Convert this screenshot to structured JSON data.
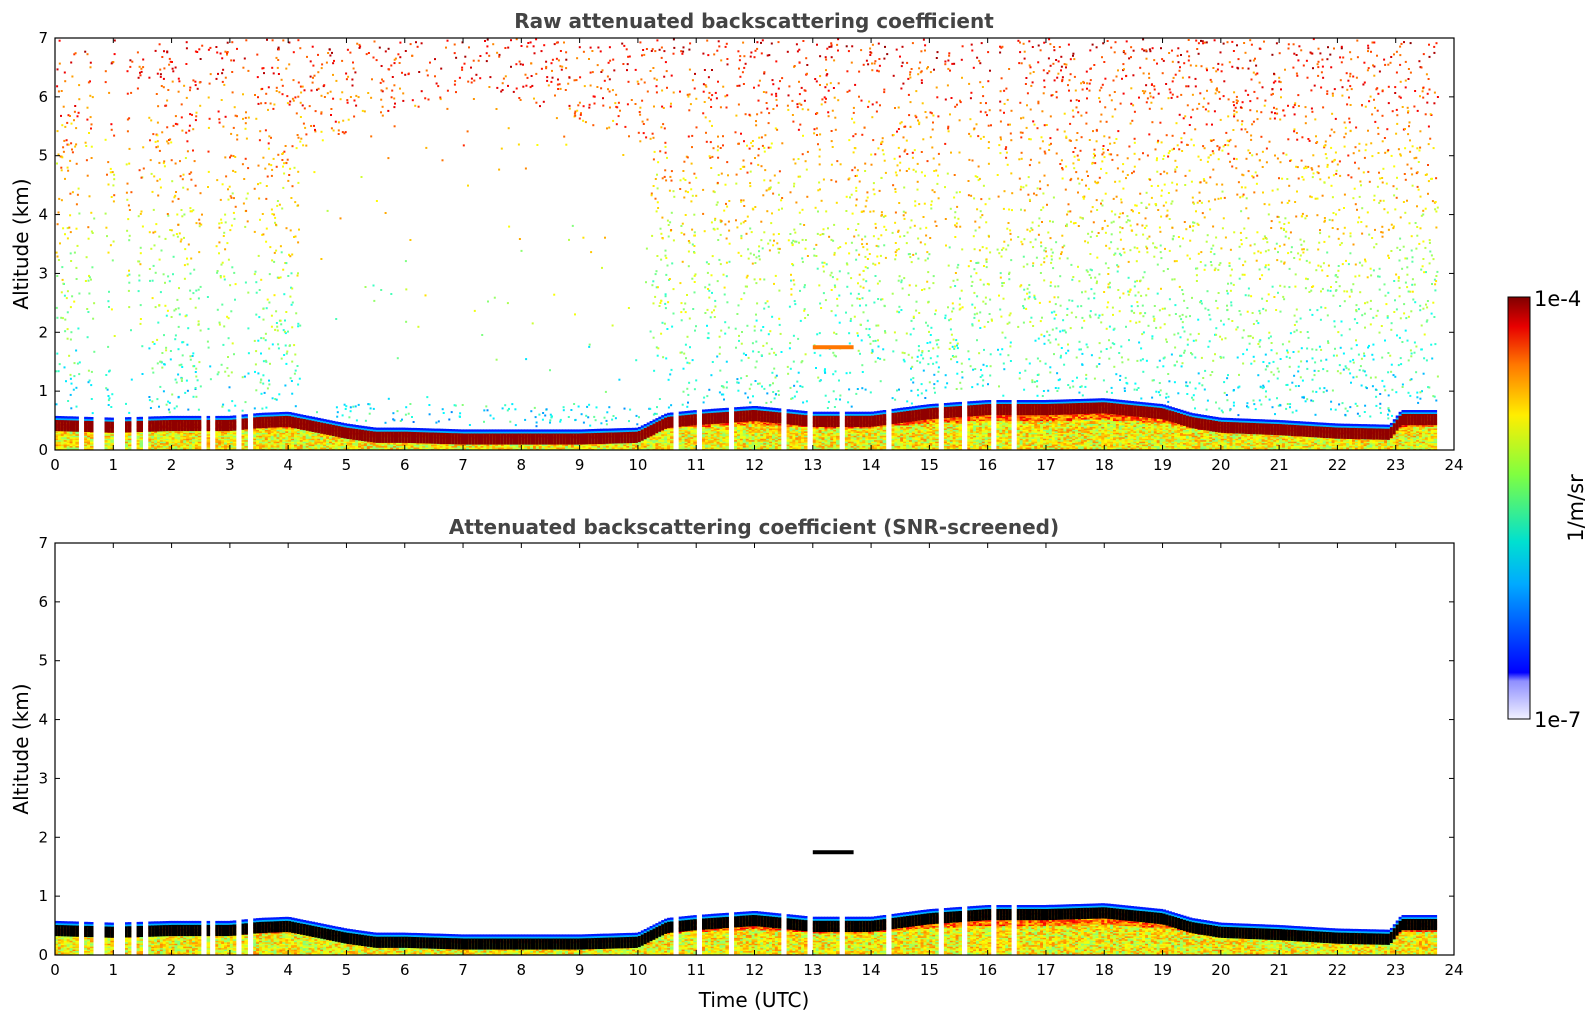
{
  "chart_data": [
    {
      "type": "heatmap",
      "title": "Raw attenuated backscattering coefficient",
      "xlabel": "",
      "ylabel": "Altitude (km)",
      "xlim": [
        0,
        24
      ],
      "ylim": [
        0,
        7
      ],
      "xticks": [
        "0",
        "1",
        "2",
        "3",
        "4",
        "5",
        "6",
        "7",
        "8",
        "9",
        "10",
        "11",
        "12",
        "13",
        "14",
        "15",
        "16",
        "17",
        "18",
        "19",
        "20",
        "21",
        "22",
        "23",
        "24"
      ],
      "yticks": [
        "0",
        "1",
        "2",
        "3",
        "4",
        "5",
        "6",
        "7"
      ],
      "data_end_hour": 23.7,
      "noise_extends_above_boundary_layer": true,
      "boundary_layer_top_km": {
        "hours": [
          0,
          1,
          2,
          3,
          3.5,
          4,
          4.5,
          5,
          5.5,
          6,
          7,
          8,
          9,
          10,
          10.5,
          11,
          12,
          13,
          14,
          15,
          16,
          17,
          18,
          19,
          19.5,
          20,
          21,
          22,
          22.9,
          23.1,
          23.7
        ],
        "values": [
          0.55,
          0.52,
          0.55,
          0.55,
          0.6,
          0.62,
          0.52,
          0.42,
          0.35,
          0.35,
          0.32,
          0.32,
          0.32,
          0.35,
          0.6,
          0.65,
          0.72,
          0.62,
          0.62,
          0.75,
          0.82,
          0.82,
          0.85,
          0.75,
          0.6,
          0.52,
          0.48,
          0.42,
          0.4,
          0.65,
          0.65
        ]
      },
      "gaps_hours": [
        0.45,
        0.7,
        0.8,
        1.05,
        1.15,
        1.35,
        1.55,
        2.55,
        2.7,
        3.15,
        3.35,
        10.65,
        11.05,
        11.6,
        12.5,
        12.95,
        13.5,
        14.3,
        15.2,
        15.6,
        16.1,
        16.45
      ],
      "elevated_layer": {
        "hours": [
          13.0,
          13.7
        ],
        "altitude_km": 1.75
      }
    },
    {
      "type": "heatmap",
      "title": "Attenuated backscattering coefficient (SNR-screened)",
      "xlabel": "Time (UTC)",
      "ylabel": "Altitude (km)",
      "xlim": [
        0,
        24
      ],
      "ylim": [
        0,
        7
      ],
      "xticks": [
        "0",
        "1",
        "2",
        "3",
        "4",
        "5",
        "6",
        "7",
        "8",
        "9",
        "10",
        "11",
        "12",
        "13",
        "14",
        "15",
        "16",
        "17",
        "18",
        "19",
        "20",
        "21",
        "22",
        "23",
        "24"
      ],
      "yticks": [
        "0",
        "1",
        "2",
        "3",
        "4",
        "5",
        "6",
        "7"
      ],
      "noise_extends_above_boundary_layer": false
    }
  ],
  "colorbar": {
    "label": "1/m/sr",
    "max_label": "1e-4",
    "min_label": "1e-7",
    "colormap": "jet",
    "screened_saturation_color": "#000000"
  }
}
